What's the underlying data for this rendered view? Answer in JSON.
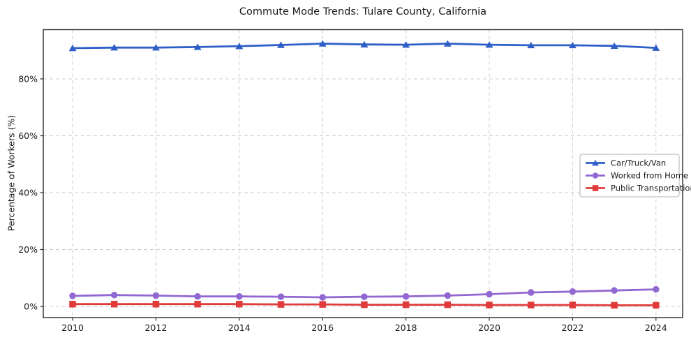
{
  "chart_data": {
    "type": "line",
    "title": "Commute Mode Trends: Tulare County, California",
    "xlabel": "",
    "ylabel": "Percentage of Workers (%)",
    "x": [
      2010,
      2011,
      2012,
      2013,
      2014,
      2015,
      2016,
      2017,
      2018,
      2019,
      2020,
      2021,
      2022,
      2023,
      2024
    ],
    "xtick_labels": [
      "2010",
      "2012",
      "2014",
      "2016",
      "2018",
      "2020",
      "2022",
      "2024"
    ],
    "xticks": [
      2010,
      2012,
      2014,
      2016,
      2018,
      2020,
      2022,
      2024
    ],
    "yticks": [
      0,
      20,
      40,
      60,
      80
    ],
    "ytick_labels": [
      "0%",
      "20%",
      "40%",
      "60%",
      "80%"
    ],
    "ylim": [
      -4,
      97.3
    ],
    "grid": "dashed",
    "legend_position": "center-right",
    "series": [
      {
        "name": "Car/Truck/Van",
        "color": "#2e5fc7",
        "marker": "triangle",
        "values": [
          90.8,
          91.0,
          91.0,
          91.2,
          91.5,
          91.9,
          92.4,
          92.1,
          92.0,
          92.4,
          92.0,
          91.8,
          91.8,
          91.6,
          90.9
        ]
      },
      {
        "name": "Worked from Home",
        "color": "#9168d2",
        "marker": "circle",
        "values": [
          3.7,
          4.0,
          3.8,
          3.5,
          3.5,
          3.4,
          3.2,
          3.4,
          3.5,
          3.8,
          4.3,
          4.9,
          5.2,
          5.6,
          6.0
        ]
      },
      {
        "name": "Public Transportation",
        "color": "#e13a3a",
        "marker": "square",
        "values": [
          0.8,
          0.8,
          0.8,
          0.8,
          0.8,
          0.7,
          0.7,
          0.6,
          0.6,
          0.6,
          0.5,
          0.5,
          0.5,
          0.4,
          0.4
        ]
      }
    ],
    "colors": {
      "grid": "#cccccc",
      "spine": "#2b2b2b",
      "text": "#1a1a1a",
      "legend_border": "#b3b3b3",
      "background": "#ffffff"
    }
  }
}
